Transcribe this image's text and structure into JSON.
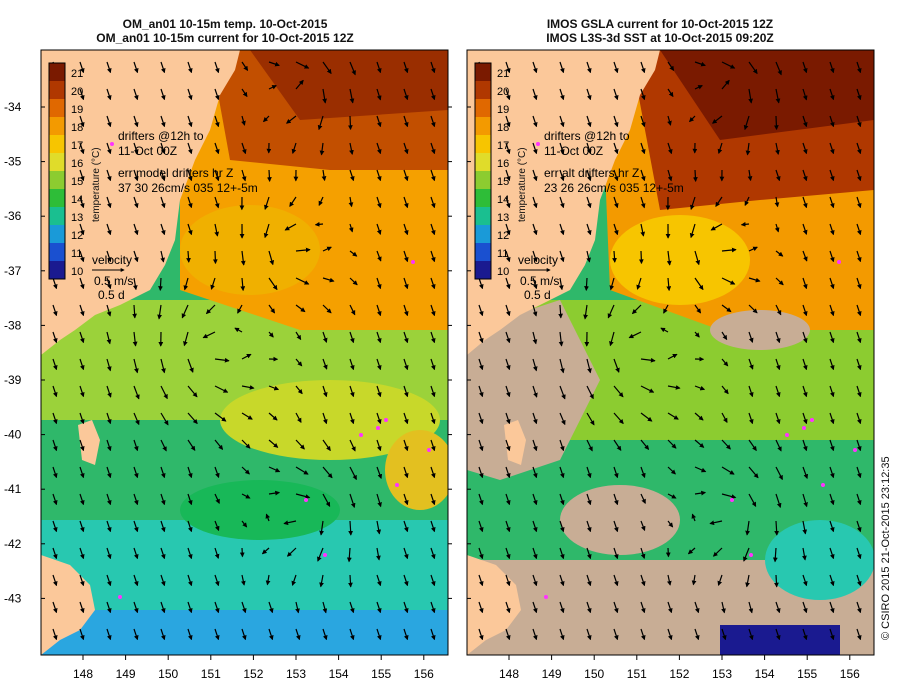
{
  "panels": [
    {
      "id": "left",
      "title_line1": "OM_an01 10-15m temp. 10-Oct-2015",
      "title_line2": "OM_an01 10-15m current for 10-Oct-2015 12Z",
      "colorbar_label": "temperature (°C)",
      "colorbar_ticks": [
        "21",
        "20",
        "19",
        "18",
        "17",
        "16",
        "15",
        "14",
        "13",
        "12",
        "11",
        "10"
      ],
      "drifters_line1": "drifters @12h to",
      "drifters_line2": "11-Oct 00Z",
      "err_line1": "err model drifters hr Z",
      "err_line2": "37 30 26cm/s 035 12+-5m",
      "velocity_label": "velocity",
      "velocity_scale1": "0.5 m/s",
      "velocity_scale2": "0.5 d"
    },
    {
      "id": "right",
      "title_line1": "IMOS GSLA current for 10-Oct-2015 12Z",
      "title_line2": "IMOS L3S-3d SST at 10-Oct-2015 09:20Z",
      "colorbar_label": "temperature (°C)",
      "colorbar_ticks": [
        "21",
        "20",
        "19",
        "18",
        "17",
        "16",
        "15",
        "14",
        "13",
        "12",
        "11",
        "10"
      ],
      "drifters_line1": "drifters @12h to",
      "drifters_line2": "11-Oct 00Z",
      "err_line1": "err alt drifters hr Z",
      "err_line2": "23 26 26cm/s 035 12+-5m",
      "velocity_label": "velocity",
      "velocity_scale1": "0.5 m/s",
      "velocity_scale2": "0.5 d"
    }
  ],
  "lat_ticks": [
    "-34",
    "-35",
    "-36",
    "-37",
    "-38",
    "-39",
    "-40",
    "-41",
    "-42",
    "-43"
  ],
  "lon_ticks": [
    "148",
    "149",
    "150",
    "151",
    "152",
    "153",
    "154",
    "155",
    "156"
  ],
  "copyright": "© CSIRO 2015   21-Oct-2015 23:12:35",
  "colors": {
    "land": "#fbc89a",
    "cloud": "#c8ad95",
    "drifter": "#ff33ff",
    "colorbar": [
      "#7a1a00",
      "#b03800",
      "#e06800",
      "#f39a00",
      "#f7c500",
      "#e0dc2a",
      "#8ccc30",
      "#2ebd38",
      "#1abf90",
      "#1a9ad8",
      "#1a50d0",
      "#1a1a90"
    ]
  }
}
